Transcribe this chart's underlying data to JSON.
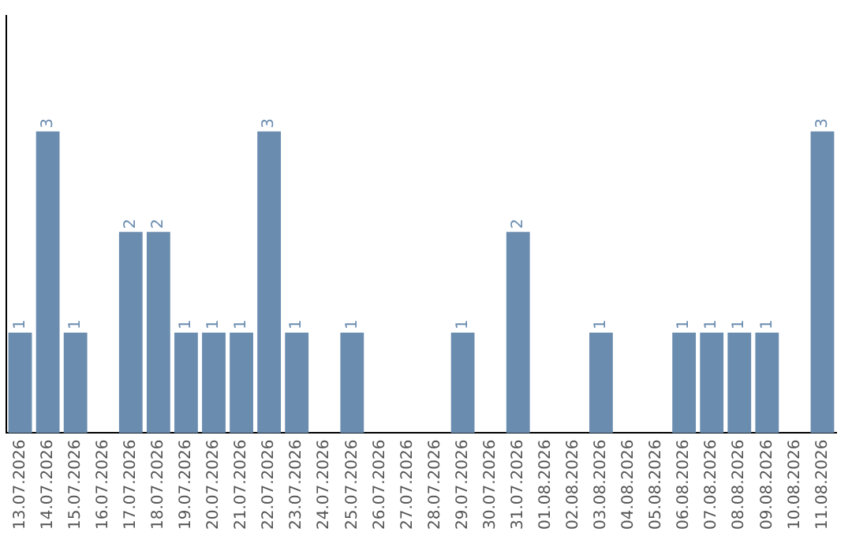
{
  "chart_data": {
    "type": "bar",
    "categories": [
      "13.07.2026",
      "14.07.2026",
      "15.07.2026",
      "16.07.2026",
      "17.07.2026",
      "18.07.2026",
      "19.07.2026",
      "20.07.2026",
      "21.07.2026",
      "22.07.2026",
      "23.07.2026",
      "24.07.2026",
      "25.07.2026",
      "26.07.2026",
      "27.07.2026",
      "28.07.2026",
      "29.07.2026",
      "30.07.2026",
      "31.07.2026",
      "01.08.2026",
      "02.08.2026",
      "03.08.2026",
      "04.08.2026",
      "05.08.2026",
      "06.08.2026",
      "07.08.2026",
      "08.08.2026",
      "09.08.2026",
      "10.08.2026",
      "11.08.2026"
    ],
    "values": [
      1,
      3,
      1,
      0,
      2,
      2,
      1,
      1,
      1,
      3,
      1,
      0,
      1,
      0,
      0,
      0,
      1,
      0,
      2,
      0,
      0,
      1,
      0,
      0,
      1,
      1,
      1,
      1,
      0,
      3
    ],
    "value_labels": [
      "1",
      "3",
      "1",
      null,
      "2",
      "2",
      "1",
      "1",
      "1",
      "3",
      "1",
      null,
      "1",
      null,
      null,
      null,
      "1",
      null,
      "2",
      null,
      null,
      "1",
      null,
      null,
      "1",
      "1",
      "1",
      "1",
      null,
      "3"
    ],
    "color": "#6a8caf",
    "ylim": [
      0,
      4.15
    ],
    "tick_labels": "x",
    "grid": false,
    "legend": false
  }
}
